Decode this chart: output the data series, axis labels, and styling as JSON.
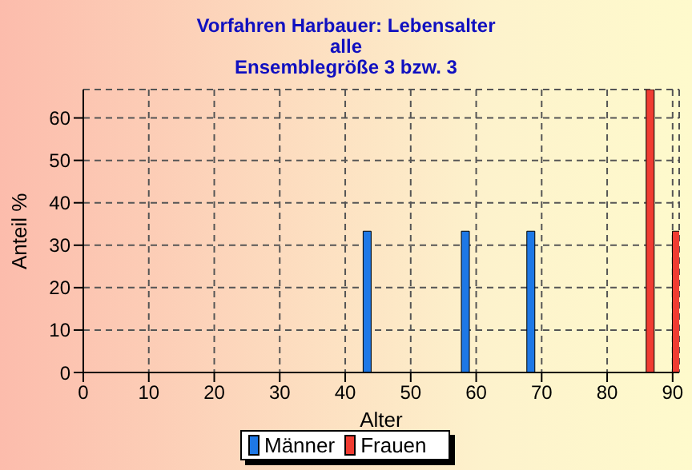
{
  "chart_data": {
    "type": "bar",
    "title": "Vorfahren Harbauer: Lebensalter",
    "subtitle": "alle\nEnsemblegröße 3 bzw. 3",
    "xlabel": "Alter",
    "ylabel": "Anteil %",
    "x": [
      44,
      59,
      69,
      86,
      90
    ],
    "series": [
      {
        "name": "Männer",
        "color": "#1e78e6",
        "values": [
          33.3,
          33.3,
          33.3,
          null,
          null
        ]
      },
      {
        "name": "Frauen",
        "color": "#f03c32",
        "values": [
          null,
          null,
          null,
          66.7,
          33.3
        ]
      }
    ],
    "xlim": [
      0,
      91
    ],
    "xticks": [
      0,
      10,
      20,
      30,
      40,
      50,
      60,
      70,
      80,
      90
    ],
    "ylim": [
      0,
      66.7
    ],
    "yticks": [
      0,
      10,
      20,
      30,
      40,
      50,
      60
    ],
    "grid": true,
    "legend": "bottom"
  }
}
